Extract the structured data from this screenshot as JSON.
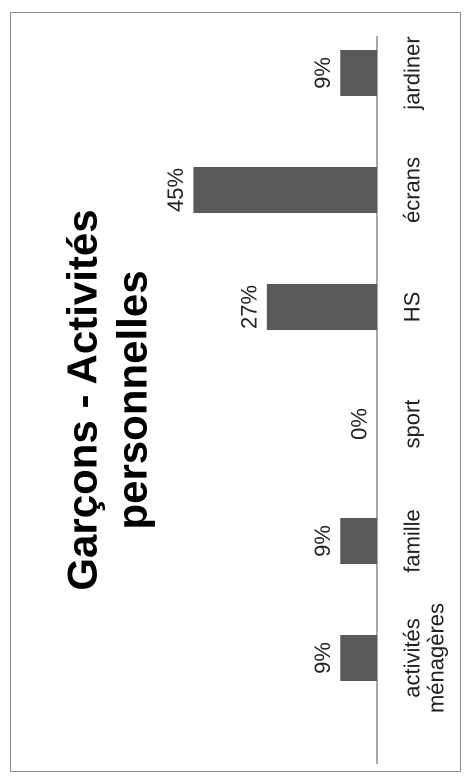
{
  "chart_data": {
    "type": "bar",
    "title_lines": [
      "Garçons - Activités",
      "personnelles"
    ],
    "categories": [
      [
        "activités",
        "ménagères"
      ],
      [
        "famille"
      ],
      [
        "sport"
      ],
      [
        "HS"
      ],
      [
        "écrans"
      ],
      [
        "jardiner"
      ]
    ],
    "values": [
      9,
      9,
      0,
      27,
      45,
      9
    ],
    "data_labels": [
      "9%",
      "9%",
      "0%",
      "27%",
      "45%",
      "9%"
    ],
    "ylim": [
      0,
      50
    ],
    "grid": false,
    "legend": "none",
    "orientation": "rotated-90-ccw",
    "bar_color": "#595959",
    "axis_color": "#8c8c8c"
  }
}
